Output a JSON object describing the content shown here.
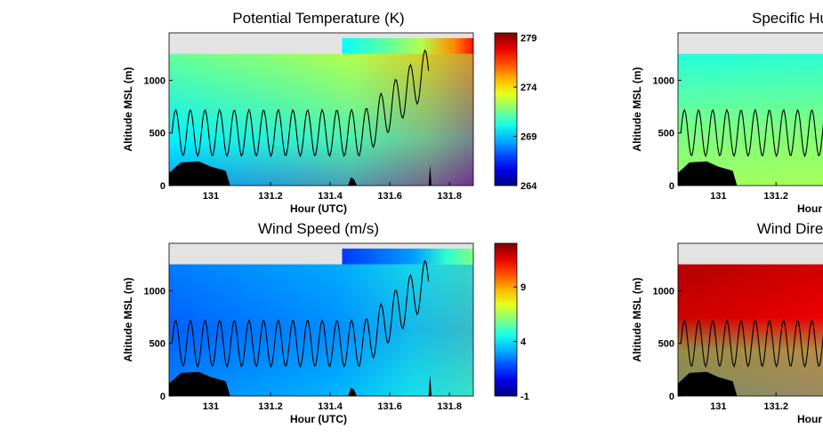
{
  "chart_data": [
    {
      "type": "heatmap",
      "title": "Potential Temperature (K)",
      "xlabel": "Hour (UTC)",
      "ylabel": "Altitude MSL (m)",
      "xlim": [
        130.86,
        131.88
      ],
      "ylim": [
        0,
        1450
      ],
      "x_ticks": [
        "131",
        "131.2",
        "131.4",
        "131.6",
        "131.8"
      ],
      "x_tick_values": [
        131.0,
        131.2,
        131.4,
        131.6,
        131.8
      ],
      "y_ticks": [
        "0",
        "500",
        "1000"
      ],
      "y_tick_values": [
        0,
        500,
        1000
      ],
      "colorbar": {
        "ticks": [
          "264",
          "269",
          "274",
          "279"
        ],
        "tick_values": [
          264,
          269,
          274,
          279
        ],
        "range": [
          264,
          279.5
        ]
      },
      "colors": {
        "gap": "#e3e3e3",
        "terrain": "#000000"
      }
    },
    {
      "type": "heatmap",
      "title": "Specific Hu",
      "xlabel": "Hour",
      "ylabel": "Altitude MSL (m)",
      "xlim": [
        130.86,
        131.4
      ],
      "ylim": [
        0,
        1450
      ],
      "x_ticks": [
        "131",
        "131.2"
      ],
      "x_tick_values": [
        131.0,
        131.2
      ],
      "y_ticks": [
        "0",
        "500",
        "1000"
      ],
      "y_tick_values": [
        0,
        500,
        1000
      ]
    },
    {
      "type": "heatmap",
      "title": "Wind Speed (m/s)",
      "xlabel": "Hour (UTC)",
      "ylabel": "Altitude MSL (m)",
      "xlim": [
        130.86,
        131.88
      ],
      "ylim": [
        0,
        1450
      ],
      "x_ticks": [
        "131",
        "131.2",
        "131.4",
        "131.6",
        "131.8"
      ],
      "x_tick_values": [
        131.0,
        131.2,
        131.4,
        131.6,
        131.8
      ],
      "y_ticks": [
        "0",
        "500",
        "1000"
      ],
      "y_tick_values": [
        0,
        500,
        1000
      ],
      "colorbar": {
        "ticks": [
          "-1",
          "4",
          "9"
        ],
        "tick_values": [
          -1,
          4,
          9
        ],
        "range": [
          -1,
          13
        ]
      }
    },
    {
      "type": "heatmap",
      "title": "Wind Dire",
      "xlabel": "Hour",
      "ylabel": "Altitude MSL (m)",
      "xlim": [
        130.86,
        131.4
      ],
      "ylim": [
        0,
        1450
      ],
      "x_ticks": [
        "131",
        "131.2"
      ],
      "x_tick_values": [
        131.0,
        131.2
      ],
      "y_ticks": [
        "0",
        "500",
        "1000"
      ],
      "y_tick_values": [
        0,
        500,
        1000
      ]
    }
  ]
}
